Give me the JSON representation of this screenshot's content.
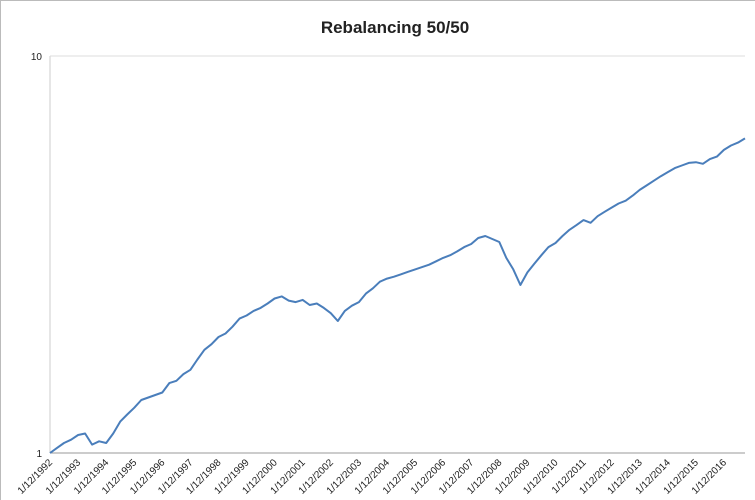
{
  "chart_data": {
    "type": "line",
    "title": "Rebalancing 50/50",
    "categories": [
      "1/12/1992",
      null,
      null,
      null,
      "1/12/1993",
      null,
      null,
      null,
      "1/12/1994",
      null,
      null,
      null,
      "1/12/1995",
      null,
      null,
      null,
      "1/12/1996",
      null,
      null,
      null,
      "1/12/1997",
      null,
      null,
      null,
      "1/12/1998",
      null,
      null,
      null,
      "1/12/1999",
      null,
      null,
      null,
      "1/12/2000",
      null,
      null,
      null,
      "1/12/2001",
      null,
      null,
      null,
      "1/12/2002",
      null,
      null,
      null,
      "1/12/2003",
      null,
      null,
      null,
      "1/12/2004",
      null,
      null,
      null,
      "1/12/2005",
      null,
      null,
      null,
      "1/12/2006",
      null,
      null,
      null,
      "1/12/2007",
      null,
      null,
      null,
      "1/12/2008",
      null,
      null,
      null,
      "1/12/2009",
      null,
      null,
      null,
      "1/12/2010",
      null,
      null,
      null,
      "1/12/2011",
      null,
      null,
      null,
      "1/12/2012",
      null,
      null,
      null,
      "1/12/2013",
      null,
      null,
      null,
      "1/12/2014",
      null,
      null,
      null,
      "1/12/2015",
      null,
      null,
      null,
      "1/12/2016",
      null,
      null,
      null
    ],
    "series": [
      {
        "color": "#4a7ebb",
        "values": [
          1.0,
          1.03,
          1.06,
          1.08,
          1.11,
          1.12,
          1.05,
          1.07,
          1.06,
          1.12,
          1.2,
          1.25,
          1.3,
          1.36,
          1.38,
          1.4,
          1.42,
          1.5,
          1.52,
          1.58,
          1.62,
          1.72,
          1.82,
          1.88,
          1.96,
          2.0,
          2.08,
          2.18,
          2.22,
          2.28,
          2.32,
          2.38,
          2.45,
          2.48,
          2.42,
          2.4,
          2.43,
          2.36,
          2.38,
          2.32,
          2.25,
          2.15,
          2.28,
          2.35,
          2.4,
          2.52,
          2.6,
          2.7,
          2.75,
          2.78,
          2.82,
          2.86,
          2.9,
          2.94,
          2.98,
          3.04,
          3.1,
          3.15,
          3.22,
          3.3,
          3.36,
          3.48,
          3.52,
          3.46,
          3.4,
          3.1,
          2.9,
          2.65,
          2.85,
          3.0,
          3.15,
          3.3,
          3.38,
          3.52,
          3.65,
          3.75,
          3.86,
          3.8,
          3.95,
          4.05,
          4.15,
          4.25,
          4.32,
          4.45,
          4.6,
          4.72,
          4.85,
          4.98,
          5.1,
          5.22,
          5.3,
          5.38,
          5.4,
          5.35,
          5.5,
          5.58,
          5.8,
          5.95,
          6.05,
          6.2
        ]
      }
    ],
    "ylim": [
      1,
      10
    ],
    "yticks": [
      1,
      10
    ],
    "log_y": true,
    "grid": true
  }
}
